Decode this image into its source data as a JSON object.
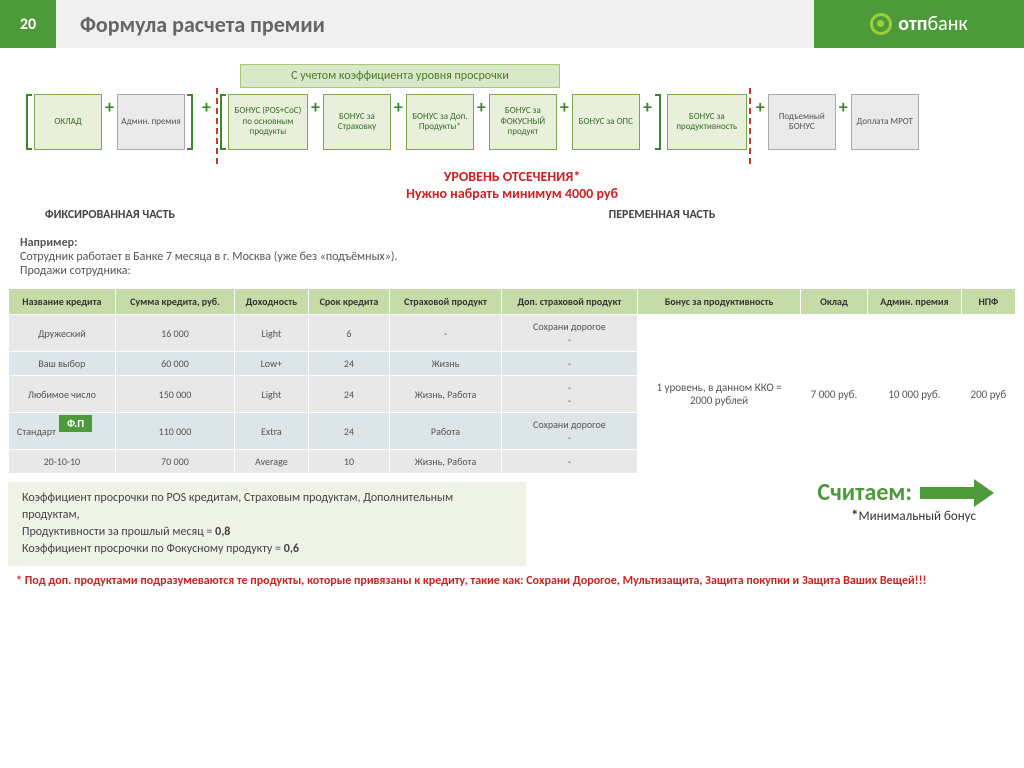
{
  "header": {
    "page": "20",
    "title": "Формула расчета премии",
    "logo_bold": "отп",
    "logo_light": "банк"
  },
  "coef_banner": "С учетом коэффициента уровня просрочки",
  "formula": {
    "fixed": [
      {
        "label": "ОКЛАД",
        "cls": "green"
      },
      {
        "label": "Админ. премия",
        "cls": "gray"
      }
    ],
    "variable": [
      {
        "label": "БОНУС (POS+CoC) по основным продукты",
        "cls": "green"
      },
      {
        "label": "БОНУС за Страховку",
        "cls": "green"
      },
      {
        "label": "БОНУС за Доп. Продукты*",
        "cls": "green"
      },
      {
        "label": "БОНУС за ФОКУСНЫЙ продукт",
        "cls": "green"
      },
      {
        "label": "БОНУС за ОПС",
        "cls": "green"
      },
      {
        "label": "БОНУС за продуктивность",
        "cls": "green"
      }
    ],
    "tail": [
      {
        "label": "Подъемный БОНУС",
        "cls": "gray"
      },
      {
        "label": "Доплата МРОТ",
        "cls": "gray"
      }
    ]
  },
  "cutoff": {
    "l1": "УРОВЕНЬ ОТСЕЧЕНИЯ*",
    "l2": "Нужно  набрать минимум 4000 руб"
  },
  "labels": {
    "fixed": "ФИКСИРОВАННАЯ ЧАСТЬ",
    "variable": "ПЕРЕМЕННАЯ ЧАСТЬ"
  },
  "example": {
    "heading": "Например:",
    "line1": "Сотрудник работает в Банке  7 месяца в г. Москва (уже без «подъёмных»).",
    "line2": "Продажи сотрудника:"
  },
  "table": {
    "columns": [
      "Название кредита",
      "Сумма кредита, руб.",
      "Доходность",
      "Срок кредита",
      "Страховой продукт",
      "Доп. страховой продукт",
      "Бонус за продуктивность",
      "Оклад",
      "Админ. премия",
      "НПФ"
    ],
    "rows": [
      [
        "Дружеский",
        "16 000",
        "Light",
        "6",
        "-",
        "Сохрани дорогое\n-"
      ],
      [
        "Ваш выбор",
        "60 000",
        "Low+",
        "24",
        "Жизнь",
        "-"
      ],
      [
        "Любимое число",
        "150 000",
        "Light",
        "24",
        "Жизнь, Работа",
        "-\n-"
      ],
      [
        "Стандарт",
        "110 000",
        "Extra",
        "24",
        "Работа",
        "Сохрани дорогое\n-"
      ],
      [
        "20-10-10",
        "70 000",
        "Average",
        "10",
        "Жизнь, Работа",
        "-"
      ]
    ],
    "merged": {
      "bonus": "1 уровень, в данном ККО =\n2000 рублей",
      "oklad": "7 000 руб.",
      "admin": "10 000 руб.",
      "npf": "200 руб"
    },
    "badge": "Ф.П"
  },
  "coef_text": {
    "l1": "Коэффициент просрочки по POS кредитам, Страховым продуктам, Дополнительным продуктам,",
    "l2": "Продуктивности за прошлый месяц = ",
    "v2": "0,8",
    "l3": "Коэффициент просрочки по Фокусному продукту = ",
    "v3": "0,6"
  },
  "calc": "Считаем:",
  "min_bonus_star": "*",
  "min_bonus": "Минимальный бонус",
  "footnote": "* Под доп. продуктами подразумеваются те продукты, которые привязаны к кредиту, такие как: Сохрани Дорогое, Мультизащита, Защита покупки и Защита Ваших Вещей!!!"
}
